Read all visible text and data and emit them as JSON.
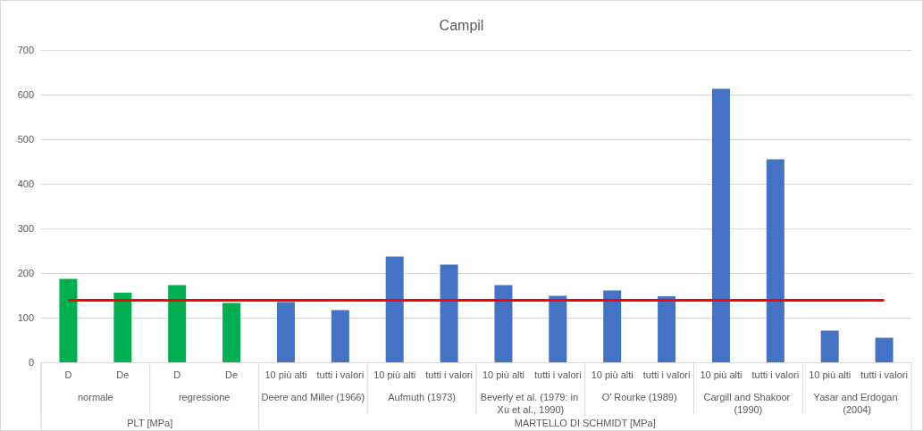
{
  "chart_data": {
    "type": "bar",
    "title": "Campil",
    "categories": [
      "D",
      "De",
      "D",
      "De",
      "10 più alti",
      "tutti i valori",
      "10 più alti",
      "tutti i valori",
      "10 più alti",
      "tutti i valori",
      "10 più alti",
      "tutti i valori",
      "10 più alti",
      "tutti i valori",
      "10 più alti",
      "tutti i valori"
    ],
    "values": [
      187,
      156,
      173,
      133,
      135,
      117,
      237,
      219,
      173,
      149,
      161,
      148,
      613,
      455,
      71,
      55
    ],
    "colors": [
      "#00b050",
      "#00b050",
      "#00b050",
      "#00b050",
      "#4472c4",
      "#4472c4",
      "#4472c4",
      "#4472c4",
      "#4472c4",
      "#4472c4",
      "#4472c4",
      "#4472c4",
      "#4472c4",
      "#4472c4",
      "#4472c4",
      "#4472c4"
    ],
    "ylim": [
      0,
      700
    ],
    "yticks": [
      0,
      100,
      200,
      300,
      400,
      500,
      600,
      700
    ],
    "grid": "y",
    "ref_lines": [
      {
        "axis": "y",
        "value": 140,
        "color": "#ff0000"
      }
    ],
    "annotations": [
      "normale",
      "regressione",
      "Deere and Miller (1966)",
      "Aufmuth (1973)",
      "Beverly et al. (1979: in Xu et al., 1990)",
      "O’ Rourke (1989)",
      "Cargill and Shakoor (1990)",
      "Yasar and Erdogan (2004)",
      "PLT [MPa]",
      "MARTELLO DI SCHMIDT [MPa]"
    ]
  }
}
